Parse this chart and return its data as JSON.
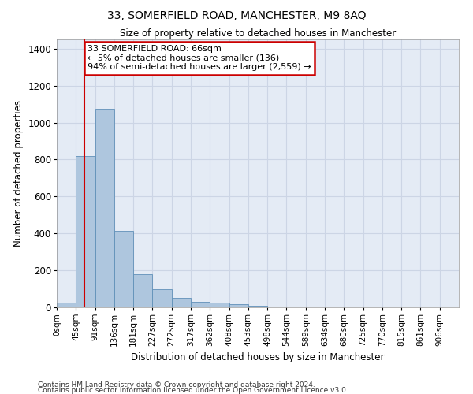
{
  "title1": "33, SOMERFIELD ROAD, MANCHESTER, M9 8AQ",
  "title2": "Size of property relative to detached houses in Manchester",
  "xlabel": "Distribution of detached houses by size in Manchester",
  "ylabel": "Number of detached properties",
  "footnote1": "Contains HM Land Registry data © Crown copyright and database right 2024.",
  "footnote2": "Contains public sector information licensed under the Open Government Licence v3.0.",
  "bar_labels": [
    "0sqm",
    "45sqm",
    "91sqm",
    "136sqm",
    "181sqm",
    "227sqm",
    "272sqm",
    "317sqm",
    "362sqm",
    "408sqm",
    "453sqm",
    "498sqm",
    "544sqm",
    "589sqm",
    "634sqm",
    "680sqm",
    "725sqm",
    "770sqm",
    "815sqm",
    "861sqm",
    "906sqm"
  ],
  "bar_heights": [
    25,
    820,
    1075,
    415,
    180,
    100,
    50,
    30,
    25,
    15,
    8,
    4,
    2,
    1,
    1,
    0,
    0,
    0,
    0,
    0,
    0
  ],
  "bar_color": "#aec6de",
  "bar_edge_color": "#6090b8",
  "grid_color": "#ccd5e5",
  "bg_color": "#e4ebf5",
  "annotation_text": "33 SOMERFIELD ROAD: 66sqm\n← 5% of detached houses are smaller (136)\n94% of semi-detached houses are larger (2,559) →",
  "annotation_box_color": "#ffffff",
  "annotation_border_color": "#cc0000",
  "ylim": [
    0,
    1450
  ],
  "yticks": [
    0,
    200,
    400,
    600,
    800,
    1000,
    1200,
    1400
  ]
}
